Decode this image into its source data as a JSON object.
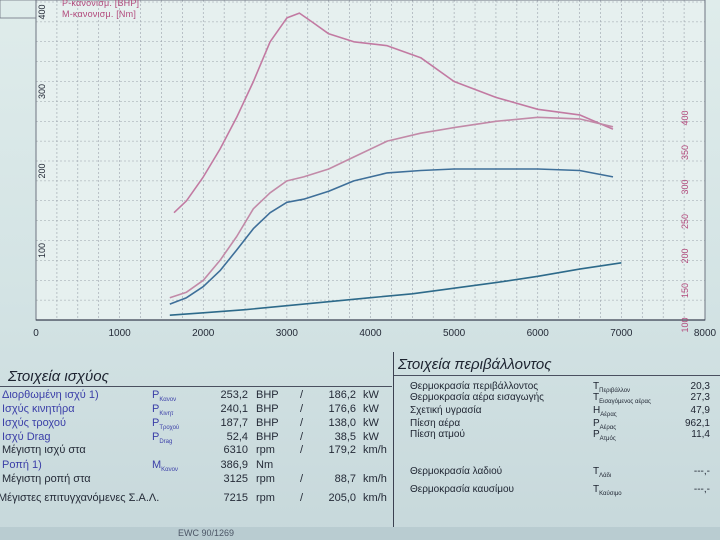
{
  "legend": [
    "P-κανονισμ. [BHP]",
    "M-κανονισμ. [Nm]"
  ],
  "chart_data": {
    "type": "line",
    "xlim": [
      0,
      8000
    ],
    "ylim": [
      0,
      400
    ],
    "x_ticks": [
      "0",
      "1000",
      "2000",
      "3000",
      "4000",
      "5000",
      "6000",
      "7000",
      "8000"
    ],
    "y_ticks_left": [
      "100",
      "200",
      "300",
      "400"
    ],
    "y_ticks_right": [
      "100",
      "150",
      "200",
      "250",
      "300",
      "350",
      "400"
    ],
    "series": [
      {
        "color": "#c27aa2",
        "x": [
          1650,
          1800,
          2000,
          2200,
          2400,
          2600,
          2800,
          3000,
          3150,
          3300,
          3500,
          3800,
          4200,
          4600,
          5000,
          5500,
          6000,
          6500,
          6900
        ],
        "y": [
          135,
          150,
          180,
          215,
          255,
          300,
          350,
          380,
          386,
          375,
          360,
          350,
          345,
          330,
          300,
          280,
          265,
          258,
          240
        ]
      },
      {
        "color": "#c28aa8",
        "x": [
          1600,
          1800,
          2000,
          2200,
          2400,
          2600,
          2800,
          3000,
          3200,
          3500,
          3800,
          4200,
          4600,
          5000,
          5500,
          6000,
          6500,
          6900
        ],
        "y": [
          28,
          35,
          50,
          75,
          105,
          140,
          160,
          175,
          180,
          190,
          205,
          225,
          235,
          242,
          250,
          255,
          253,
          243
        ]
      },
      {
        "color": "#3e6f99",
        "x": [
          1600,
          1800,
          2000,
          2200,
          2400,
          2600,
          2800,
          3000,
          3200,
          3500,
          3800,
          4200,
          4600,
          5000,
          5500,
          6000,
          6500,
          6900
        ],
        "y": [
          20,
          28,
          42,
          62,
          88,
          115,
          135,
          148,
          152,
          162,
          175,
          185,
          188,
          190,
          190,
          190,
          188,
          180
        ]
      },
      {
        "color": "#2d6a8a",
        "x": [
          1600,
          2000,
          2500,
          3000,
          3500,
          4000,
          4500,
          5000,
          5500,
          6000,
          6500,
          7000
        ],
        "y": [
          6,
          9,
          13,
          18,
          23,
          28,
          33,
          40,
          47,
          55,
          64,
          72
        ]
      }
    ]
  },
  "power": {
    "title": "Στοιχεία ισχύος",
    "rows": [
      {
        "label": "Διορθωμένη ισχύ",
        "ref": "1)",
        "sym": "P",
        "sub": "Κανον",
        "v1": "253,2",
        "u1": "BHP",
        "sep": "/",
        "v2": "186,2",
        "u2": "kW"
      },
      {
        "label": "Ισχύς κινητήρα",
        "ref": "",
        "sym": "P",
        "sub": "Κινητ",
        "v1": "240,1",
        "u1": "BHP",
        "sep": "/",
        "v2": "176,6",
        "u2": "kW"
      },
      {
        "label": "Ισχύς τροχού",
        "ref": "",
        "sym": "P",
        "sub": "Τροχού",
        "v1": "187,7",
        "u1": "BHP",
        "sep": "/",
        "v2": "138,0",
        "u2": "kW"
      },
      {
        "label": "Ισχύ Drag",
        "ref": "",
        "sym": "P",
        "sub": "Drag",
        "v1": "52,4",
        "u1": "BHP",
        "sep": "/",
        "v2": "38,5",
        "u2": "kW"
      },
      {
        "label": "Μέγιστη ισχύ στα",
        "ref": "",
        "sym": "",
        "sub": "",
        "v1": "6310",
        "u1": "rpm",
        "sep": "/",
        "v2": "179,2",
        "u2": "km/h"
      },
      {
        "label": "Ροπή",
        "ref": "1)",
        "sym": "M",
        "sub": "Κανον",
        "v1": "386,9",
        "u1": "Nm",
        "sep": "",
        "v2": "",
        "u2": ""
      },
      {
        "label": "Μέγιστη ροπή στα",
        "ref": "",
        "sym": "",
        "sub": "",
        "v1": "3125",
        "u1": "rpm",
        "sep": "/",
        "v2": "88,7",
        "u2": "km/h"
      },
      {
        "label": "Μέγιστες επιτυγχανόμενες Σ.Α.Λ.",
        "ref": "",
        "sym": "",
        "sub": "",
        "v1": "7215",
        "u1": "rpm",
        "sep": "/",
        "v2": "205,0",
        "u2": "km/h"
      }
    ]
  },
  "env": {
    "title": "Στοιχεία περιβάλλοντος",
    "rows": [
      {
        "label": "Θερμοκρασία περιβάλλοντος",
        "sym": "T",
        "sub": "Περιβάλλον",
        "val": "20,3"
      },
      {
        "label": "Θερμοκρασία αέρα εισαγωγής",
        "sym": "T",
        "sub": "Εισαγόμενος αέρας",
        "val": "27,3"
      },
      {
        "label": "Σχετική υγρασία",
        "sym": "H",
        "sub": "Αέρας",
        "val": "47,9"
      },
      {
        "label": "Πίεση αέρα",
        "sym": "P",
        "sub": "Αέρας",
        "val": "962,1"
      },
      {
        "label": "Πίεση ατμού",
        "sym": "P",
        "sub": "Ατμός",
        "val": "11,4"
      },
      {
        "label": "Θερμοκρασία λαδιού",
        "sym": "T",
        "sub": "Λάδι",
        "val": "---,-"
      },
      {
        "label": "Θερμοκρασία καυσίμου",
        "sym": "T",
        "sub": "Καύσιμο",
        "val": "---,-"
      }
    ]
  },
  "footer": "EWC 90/1269"
}
